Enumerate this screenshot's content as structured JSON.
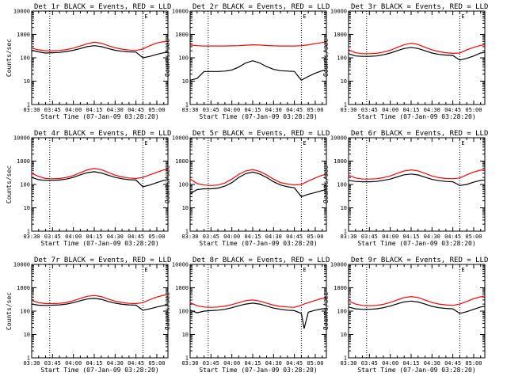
{
  "figure": {
    "background": "#ffffff",
    "events_color": "#000000",
    "lld_color": "#ff0000"
  },
  "chart_data": [
    {
      "type": "line",
      "title": "Det 1r BLACK = Events, RED = LLD",
      "xlabel": "Start Time (07-Jan-09 03:28:20)",
      "ylabel": "Counts/sec",
      "x_tick_labels": [
        "03:30",
        "03:45",
        "04:00",
        "04:15",
        "04:30",
        "04:45",
        "05:00"
      ],
      "y_tick_labels": [
        "1",
        "10",
        "100",
        "1000",
        "10000"
      ],
      "y_scale": "log",
      "ylim": [
        1,
        10000
      ],
      "xlim": [
        "03:30",
        "05:08"
      ],
      "marker_times": [
        "03:43",
        "04:50"
      ],
      "top_marker_time": "04:50",
      "top_marker_label": "E",
      "x": [
        "03:30",
        "03:35",
        "03:40",
        "03:45",
        "03:50",
        "03:55",
        "04:00",
        "04:05",
        "04:10",
        "04:15",
        "04:20",
        "04:25",
        "04:30",
        "04:35",
        "04:40",
        "04:45",
        "04:50",
        "04:55",
        "05:00",
        "05:05",
        "05:08"
      ],
      "series": [
        {
          "name": "Events",
          "color": "#000000",
          "values": [
            210,
            180,
            160,
            165,
            170,
            185,
            210,
            250,
            300,
            330,
            300,
            250,
            210,
            190,
            180,
            175,
            100,
            115,
            140,
            165,
            170
          ]
        },
        {
          "name": "LLD",
          "color": "#ff0000",
          "values": [
            260,
            220,
            200,
            200,
            205,
            225,
            260,
            320,
            400,
            460,
            420,
            330,
            270,
            235,
            215,
            205,
            240,
            330,
            430,
            490,
            510
          ]
        }
      ]
    },
    {
      "type": "line",
      "title": "Det 2r BLACK = Events, RED = LLD",
      "xlabel": "Start Time (07-Jan-09 03:28:20)",
      "ylabel": "Counts/sec",
      "x_tick_labels": [
        "03:30",
        "03:45",
        "04:00",
        "04:15",
        "04:30",
        "04:45",
        "05:00"
      ],
      "y_tick_labels": [
        "1",
        "10",
        "100",
        "1000",
        "10000"
      ],
      "y_scale": "log",
      "ylim": [
        1,
        10000
      ],
      "xlim": [
        "03:30",
        "05:08"
      ],
      "marker_times": [
        "03:43",
        "04:50"
      ],
      "top_marker_time": "04:50",
      "top_marker_label": "E",
      "x": [
        "03:30",
        "03:35",
        "03:40",
        "03:45",
        "03:50",
        "03:55",
        "04:00",
        "04:05",
        "04:10",
        "04:15",
        "04:20",
        "04:25",
        "04:30",
        "04:35",
        "04:40",
        "04:45",
        "04:50",
        "04:55",
        "05:00",
        "05:05",
        "05:08"
      ],
      "series": [
        {
          "name": "Events",
          "color": "#000000",
          "values": [
            11,
            13,
            26,
            26,
            26,
            27,
            30,
            40,
            60,
            75,
            60,
            42,
            32,
            28,
            27,
            26,
            11,
            16,
            22,
            28,
            30
          ]
        },
        {
          "name": "LLD",
          "color": "#ff0000",
          "values": [
            350,
            330,
            320,
            320,
            320,
            320,
            325,
            330,
            345,
            360,
            350,
            335,
            325,
            320,
            320,
            320,
            330,
            360,
            400,
            450,
            470
          ]
        }
      ]
    },
    {
      "type": "line",
      "title": "Det 3r BLACK = Events, RED = LLD",
      "xlabel": "Start Time (07-Jan-09 03:28:20)",
      "ylabel": "Counts/sec",
      "x_tick_labels": [
        "03:30",
        "03:45",
        "04:00",
        "04:15",
        "04:30",
        "04:45",
        "05:00"
      ],
      "y_tick_labels": [
        "1",
        "10",
        "100",
        "1000",
        "10000"
      ],
      "y_scale": "log",
      "ylim": [
        1,
        10000
      ],
      "xlim": [
        "03:30",
        "05:08"
      ],
      "marker_times": [
        "03:43",
        "04:50"
      ],
      "top_marker_time": "04:50",
      "top_marker_label": "E",
      "x": [
        "03:30",
        "03:35",
        "03:40",
        "03:45",
        "03:50",
        "03:55",
        "04:00",
        "04:05",
        "04:10",
        "04:15",
        "04:20",
        "04:25",
        "04:30",
        "04:35",
        "04:40",
        "04:45",
        "04:50",
        "04:55",
        "05:00",
        "05:05",
        "05:08"
      ],
      "series": [
        {
          "name": "Events",
          "color": "#000000",
          "values": [
            150,
            120,
            115,
            115,
            120,
            135,
            160,
            200,
            250,
            280,
            250,
            200,
            160,
            140,
            130,
            125,
            80,
            95,
            120,
            160,
            170
          ]
        },
        {
          "name": "LLD",
          "color": "#ff0000",
          "values": [
            220,
            165,
            150,
            150,
            155,
            175,
            210,
            280,
            360,
            420,
            370,
            280,
            220,
            185,
            165,
            155,
            160,
            220,
            280,
            340,
            360
          ]
        }
      ]
    },
    {
      "type": "line",
      "title": "Det 4r BLACK = Events, RED = LLD",
      "xlabel": "Start Time (07-Jan-09 03:28:20)",
      "ylabel": "Counts/sec",
      "x_tick_labels": [
        "03:30",
        "03:45",
        "04:00",
        "04:15",
        "04:30",
        "04:45",
        "05:00"
      ],
      "y_tick_labels": [
        "1",
        "10",
        "100",
        "1000",
        "10000"
      ],
      "y_scale": "log",
      "ylim": [
        1,
        10000
      ],
      "xlim": [
        "03:30",
        "05:08"
      ],
      "marker_times": [
        "03:43",
        "04:50"
      ],
      "top_marker_time": "04:50",
      "top_marker_label": "E",
      "x": [
        "03:30",
        "03:35",
        "03:40",
        "03:45",
        "03:50",
        "03:55",
        "04:00",
        "04:05",
        "04:10",
        "04:15",
        "04:20",
        "04:25",
        "04:30",
        "04:35",
        "04:40",
        "04:45",
        "04:50",
        "04:55",
        "05:00",
        "05:05",
        "05:08"
      ],
      "series": [
        {
          "name": "Events",
          "color": "#000000",
          "values": [
            200,
            160,
            150,
            150,
            155,
            170,
            200,
            260,
            320,
            350,
            310,
            250,
            200,
            175,
            160,
            155,
            80,
            95,
            120,
            150,
            160
          ]
        },
        {
          "name": "LLD",
          "color": "#ff0000",
          "values": [
            300,
            220,
            180,
            175,
            180,
            200,
            240,
            320,
            420,
            480,
            430,
            330,
            250,
            210,
            190,
            180,
            200,
            260,
            330,
            420,
            450
          ]
        }
      ]
    },
    {
      "type": "line",
      "title": "Det 5r BLACK = Events, RED = LLD",
      "xlabel": "Start Time (07-Jan-09 03:28:20)",
      "ylabel": "Counts/sec",
      "x_tick_labels": [
        "03:30",
        "03:45",
        "04:00",
        "04:15",
        "04:30",
        "04:45",
        "05:00"
      ],
      "y_tick_labels": [
        "1",
        "10",
        "100",
        "1000",
        "10000"
      ],
      "y_scale": "log",
      "ylim": [
        1,
        10000
      ],
      "xlim": [
        "03:30",
        "05:08"
      ],
      "marker_times": [
        "03:43",
        "04:50"
      ],
      "top_marker_time": "04:50",
      "top_marker_label": "E",
      "x": [
        "03:30",
        "03:35",
        "03:40",
        "03:45",
        "03:50",
        "03:55",
        "04:00",
        "04:05",
        "04:10",
        "04:15",
        "04:20",
        "04:25",
        "04:30",
        "04:35",
        "04:40",
        "04:45",
        "04:50",
        "04:55",
        "05:00",
        "05:05",
        "05:08"
      ],
      "series": [
        {
          "name": "Events",
          "color": "#000000",
          "values": [
            40,
            60,
            65,
            65,
            70,
            85,
            120,
            200,
            290,
            340,
            280,
            200,
            130,
            95,
            80,
            72,
            30,
            38,
            45,
            55,
            60
          ]
        },
        {
          "name": "LLD",
          "color": "#ff0000",
          "values": [
            170,
            110,
            95,
            90,
            95,
            115,
            170,
            270,
            380,
            430,
            360,
            260,
            170,
            120,
            105,
            95,
            100,
            140,
            190,
            250,
            270
          ]
        }
      ]
    },
    {
      "type": "line",
      "title": "Det 6r BLACK = Events, RED = LLD",
      "xlabel": "Start Time (07-Jan-09 03:28:20)",
      "ylabel": "Counts/sec",
      "x_tick_labels": [
        "03:30",
        "03:45",
        "04:00",
        "04:15",
        "04:30",
        "04:45",
        "05:00"
      ],
      "y_tick_labels": [
        "1",
        "10",
        "100",
        "1000",
        "10000"
      ],
      "y_scale": "log",
      "ylim": [
        1,
        10000
      ],
      "xlim": [
        "03:30",
        "05:08"
      ],
      "marker_times": [
        "03:43",
        "04:50"
      ],
      "top_marker_time": "04:50",
      "top_marker_label": "E",
      "x": [
        "03:30",
        "03:35",
        "03:40",
        "03:45",
        "03:50",
        "03:55",
        "04:00",
        "04:05",
        "04:10",
        "04:15",
        "04:20",
        "04:25",
        "04:30",
        "04:35",
        "04:40",
        "04:45",
        "04:50",
        "04:55",
        "05:00",
        "05:05",
        "05:08"
      ],
      "series": [
        {
          "name": "Events",
          "color": "#000000",
          "values": [
            150,
            135,
            130,
            130,
            135,
            150,
            170,
            210,
            260,
            280,
            255,
            205,
            165,
            145,
            135,
            130,
            90,
            100,
            125,
            150,
            155
          ]
        },
        {
          "name": "LLD",
          "color": "#ff0000",
          "values": [
            250,
            190,
            170,
            170,
            175,
            195,
            230,
            300,
            380,
            420,
            380,
            300,
            230,
            195,
            180,
            175,
            190,
            260,
            340,
            410,
            420
          ]
        }
      ]
    },
    {
      "type": "line",
      "title": "Det 7r BLACK = Events, RED = LLD",
      "xlabel": "Start Time (07-Jan-09 03:28:20)",
      "ylabel": "Counts/sec",
      "x_tick_labels": [
        "03:30",
        "03:45",
        "04:00",
        "04:15",
        "04:30",
        "04:45",
        "05:00"
      ],
      "y_tick_labels": [
        "1",
        "10",
        "100",
        "1000",
        "10000"
      ],
      "y_scale": "log",
      "ylim": [
        1,
        10000
      ],
      "xlim": [
        "03:30",
        "05:08"
      ],
      "marker_times": [
        "03:43",
        "04:50"
      ],
      "top_marker_time": "04:50",
      "top_marker_label": "E",
      "x": [
        "03:30",
        "03:35",
        "03:40",
        "03:45",
        "03:50",
        "03:55",
        "04:00",
        "04:05",
        "04:10",
        "04:15",
        "04:20",
        "04:25",
        "04:30",
        "04:35",
        "04:40",
        "04:45",
        "04:50",
        "04:55",
        "05:00",
        "05:05",
        "05:08"
      ],
      "series": [
        {
          "name": "Events",
          "color": "#000000",
          "values": [
            200,
            180,
            175,
            180,
            185,
            200,
            230,
            280,
            330,
            350,
            320,
            260,
            220,
            195,
            185,
            180,
            110,
            125,
            150,
            175,
            180
          ]
        },
        {
          "name": "LLD",
          "color": "#ff0000",
          "values": [
            290,
            230,
            210,
            210,
            215,
            235,
            280,
            350,
            430,
            470,
            420,
            330,
            270,
            235,
            215,
            210,
            230,
            310,
            400,
            480,
            500
          ]
        }
      ]
    },
    {
      "type": "line",
      "title": "Det 8r BLACK = Events, RED = LLD",
      "xlabel": "Start Time (07-Jan-09 03:28:20)",
      "ylabel": "Counts/sec",
      "x_tick_labels": [
        "03:30",
        "03:45",
        "04:00",
        "04:15",
        "04:30",
        "04:45",
        "05:00"
      ],
      "y_tick_labels": [
        "1",
        "10",
        "100",
        "1000",
        "10000"
      ],
      "y_scale": "log",
      "ylim": [
        1,
        10000
      ],
      "xlim": [
        "03:30",
        "05:08"
      ],
      "marker_times": [
        "03:43",
        "04:50"
      ],
      "top_marker_time": "04:50",
      "top_marker_label": "E",
      "x": [
        "03:30",
        "03:35",
        "03:40",
        "03:45",
        "03:50",
        "03:55",
        "04:00",
        "04:05",
        "04:10",
        "04:15",
        "04:20",
        "04:25",
        "04:30",
        "04:35",
        "04:40",
        "04:45",
        "04:50",
        "04:52",
        "04:55",
        "05:00",
        "05:05",
        "05:08"
      ],
      "series": [
        {
          "name": "Events",
          "color": "#000000",
          "values": [
            110,
            85,
            100,
            105,
            110,
            120,
            140,
            170,
            200,
            220,
            200,
            165,
            135,
            120,
            110,
            105,
            80,
            18,
            90,
            110,
            125,
            130
          ]
        },
        {
          "name": "LLD",
          "color": "#ff0000",
          "values": [
            230,
            170,
            150,
            145,
            150,
            165,
            190,
            230,
            280,
            300,
            270,
            220,
            180,
            160,
            150,
            145,
            180,
            200,
            230,
            290,
            350,
            360
          ]
        }
      ]
    },
    {
      "type": "line",
      "title": "Det 9r BLACK = Events, RED = LLD",
      "xlabel": "Start Time (07-Jan-09 03:28:20)",
      "ylabel": "Counts/sec",
      "x_tick_labels": [
        "03:30",
        "03:45",
        "04:00",
        "04:15",
        "04:30",
        "04:45",
        "05:00"
      ],
      "y_tick_labels": [
        "1",
        "10",
        "100",
        "1000",
        "10000"
      ],
      "y_scale": "log",
      "ylim": [
        1,
        10000
      ],
      "xlim": [
        "03:30",
        "05:08"
      ],
      "marker_times": [
        "03:43",
        "04:50"
      ],
      "top_marker_time": "04:50",
      "top_marker_label": "E",
      "x": [
        "03:30",
        "03:35",
        "03:40",
        "03:45",
        "03:50",
        "03:55",
        "04:00",
        "04:05",
        "04:10",
        "04:15",
        "04:20",
        "04:25",
        "04:30",
        "04:35",
        "04:40",
        "04:45",
        "04:50",
        "04:55",
        "05:00",
        "05:05",
        "05:08"
      ],
      "series": [
        {
          "name": "Events",
          "color": "#000000",
          "values": [
            150,
            125,
            120,
            120,
            125,
            140,
            165,
            205,
            250,
            270,
            245,
            200,
            160,
            140,
            130,
            125,
            80,
            95,
            120,
            150,
            160
          ]
        },
        {
          "name": "LLD",
          "color": "#ff0000",
          "values": [
            270,
            200,
            175,
            170,
            175,
            195,
            235,
            300,
            380,
            420,
            380,
            300,
            235,
            200,
            185,
            175,
            200,
            260,
            340,
            410,
            420
          ]
        }
      ]
    }
  ]
}
